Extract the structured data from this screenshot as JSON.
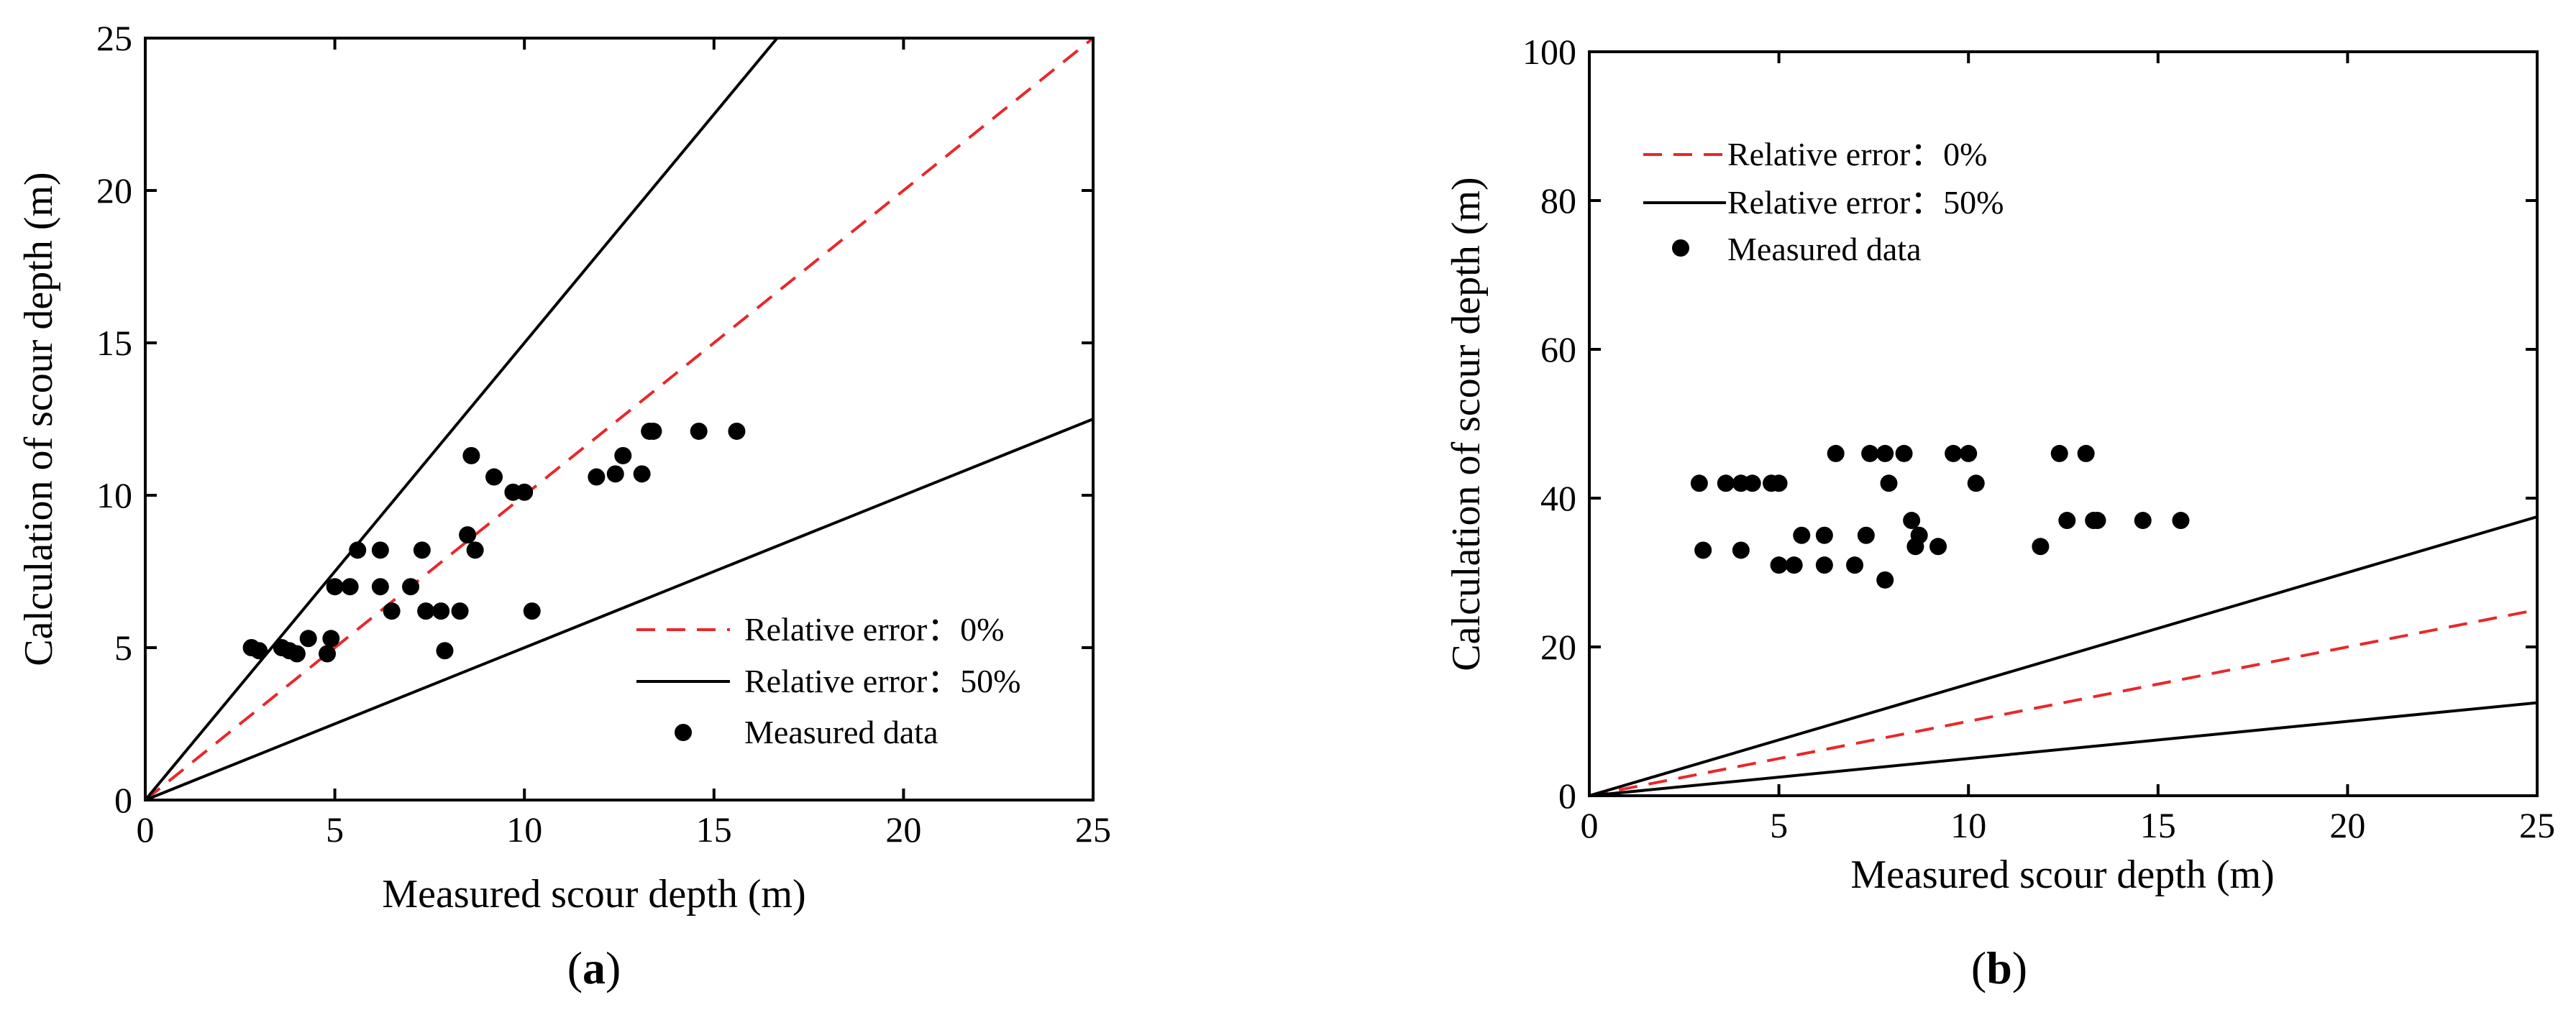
{
  "chart_data": [
    {
      "type": "scatter",
      "panel_label": "a",
      "xlabel": "Measured scour depth (m)",
      "ylabel": "Calculation of scour depth (m)",
      "xlim": [
        0,
        25
      ],
      "ylim": [
        0,
        25
      ],
      "xticks": [
        0,
        5,
        10,
        15,
        20,
        25
      ],
      "yticks": [
        0,
        5,
        10,
        15,
        20,
        25
      ],
      "grid": false,
      "legend_position": "bottom-right",
      "lines": [
        {
          "name": "Relative error：0%",
          "color": "#e8282b",
          "dash": "dashed",
          "points": [
            [
              0,
              0
            ],
            [
              25,
              25
            ]
          ]
        },
        {
          "name": "Relative error：50%",
          "color": "#000000",
          "dash": "solid",
          "points": [
            [
              0,
              0
            ],
            [
              16.667,
              25
            ]
          ]
        },
        {
          "name": "Relative error：50%",
          "color": "#000000",
          "dash": "solid",
          "points": [
            [
              0,
              0
            ],
            [
              25,
              12.5
            ]
          ]
        }
      ],
      "series": [
        {
          "name": "Measured data",
          "color": "#000000",
          "points": [
            [
              2.8,
              5.0
            ],
            [
              3.0,
              4.9
            ],
            [
              3.6,
              5.0
            ],
            [
              3.8,
              4.9
            ],
            [
              4.0,
              4.8
            ],
            [
              4.3,
              5.3
            ],
            [
              4.8,
              4.8
            ],
            [
              4.9,
              5.3
            ],
            [
              5.0,
              7.0
            ],
            [
              5.4,
              7.0
            ],
            [
              5.6,
              8.2
            ],
            [
              6.2,
              8.2
            ],
            [
              6.2,
              7.0
            ],
            [
              6.5,
              6.2
            ],
            [
              7.0,
              7.0
            ],
            [
              7.3,
              8.2
            ],
            [
              7.4,
              6.2
            ],
            [
              7.8,
              6.2
            ],
            [
              7.9,
              4.9
            ],
            [
              8.3,
              6.2
            ],
            [
              8.5,
              8.7
            ],
            [
              8.6,
              11.3
            ],
            [
              8.7,
              8.2
            ],
            [
              9.2,
              10.6
            ],
            [
              9.7,
              10.1
            ],
            [
              10.0,
              10.1
            ],
            [
              10.2,
              6.2
            ],
            [
              11.9,
              10.6
            ],
            [
              12.4,
              10.7
            ],
            [
              12.6,
              11.3
            ],
            [
              13.1,
              10.7
            ],
            [
              13.3,
              12.1
            ],
            [
              13.4,
              12.1
            ],
            [
              14.6,
              12.1
            ],
            [
              15.6,
              12.1
            ]
          ]
        }
      ]
    },
    {
      "type": "scatter",
      "panel_label": "b",
      "xlabel": "Measured scour depth (m)",
      "ylabel": "Calculation of scour depth (m)",
      "xlim": [
        0,
        25
      ],
      "ylim": [
        0,
        100
      ],
      "xticks": [
        0,
        5,
        10,
        15,
        20,
        25
      ],
      "yticks": [
        0,
        20,
        40,
        60,
        80,
        100
      ],
      "grid": false,
      "legend_position": "top-left",
      "lines": [
        {
          "name": "Relative error：0%",
          "color": "#e8282b",
          "dash": "dashed",
          "points": [
            [
              0,
              0
            ],
            [
              25,
              25
            ]
          ]
        },
        {
          "name": "Relative error：50%",
          "color": "#000000",
          "dash": "solid",
          "points": [
            [
              0,
              0
            ],
            [
              25,
              37.5
            ]
          ]
        },
        {
          "name": "Relative error：50%",
          "color": "#000000",
          "dash": "solid",
          "points": [
            [
              0,
              0
            ],
            [
              25,
              12.5
            ]
          ]
        }
      ],
      "series": [
        {
          "name": "Measured data",
          "color": "#000000",
          "points": [
            [
              2.9,
              42
            ],
            [
              3.0,
              33
            ],
            [
              3.6,
              42
            ],
            [
              4.0,
              42
            ],
            [
              4.0,
              33
            ],
            [
              4.3,
              42
            ],
            [
              4.8,
              42
            ],
            [
              5.0,
              42
            ],
            [
              5.0,
              31
            ],
            [
              5.4,
              31
            ],
            [
              5.6,
              35
            ],
            [
              6.2,
              35
            ],
            [
              6.2,
              31
            ],
            [
              6.5,
              46
            ],
            [
              7.0,
              31
            ],
            [
              7.3,
              35
            ],
            [
              7.4,
              46
            ],
            [
              7.8,
              46
            ],
            [
              7.8,
              29
            ],
            [
              7.9,
              42
            ],
            [
              8.3,
              46
            ],
            [
              8.5,
              37
            ],
            [
              8.6,
              33.5
            ],
            [
              8.7,
              35
            ],
            [
              9.2,
              33.5
            ],
            [
              9.6,
              46
            ],
            [
              10.0,
              46
            ],
            [
              10.2,
              42
            ],
            [
              11.9,
              33.5
            ],
            [
              12.4,
              46
            ],
            [
              12.6,
              37
            ],
            [
              13.1,
              46
            ],
            [
              13.3,
              37
            ],
            [
              13.4,
              37
            ],
            [
              14.6,
              37
            ],
            [
              15.6,
              37
            ]
          ]
        }
      ]
    }
  ]
}
